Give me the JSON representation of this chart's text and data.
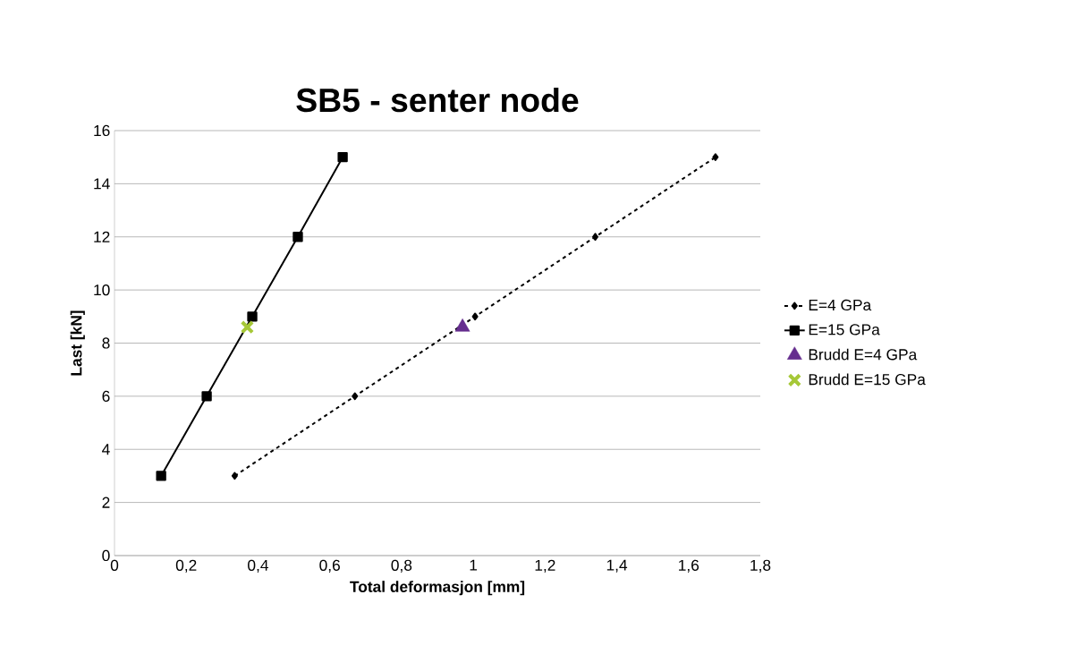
{
  "chart_data": {
    "type": "line",
    "title": "SB5 - senter node",
    "xlabel": "Total deformasjon [mm]",
    "ylabel": "Last [kN]",
    "xlim": [
      0,
      1.8
    ],
    "ylim": [
      0,
      16
    ],
    "xticks": [
      0,
      {
        "value": 0.2,
        "label": "0,2"
      },
      {
        "value": 0.4,
        "label": "0,4"
      },
      {
        "value": 0.6,
        "label": "0,6"
      },
      {
        "value": 0.8,
        "label": "0,8"
      },
      1,
      {
        "value": 1.2,
        "label": "1,2"
      },
      {
        "value": 1.4,
        "label": "1,4"
      },
      {
        "value": 1.6,
        "label": "1,6"
      },
      {
        "value": 1.8,
        "label": "1,8"
      }
    ],
    "yticks": [
      0,
      2,
      4,
      6,
      8,
      10,
      12,
      14,
      16
    ],
    "grid": "y",
    "legend": "right",
    "series": [
      {
        "name": "E=4 GPa",
        "color": "#000000",
        "x": [
          0.335,
          0.67,
          1.005,
          1.34,
          1.675
        ],
        "values": [
          3,
          6,
          9,
          12,
          15
        ],
        "marker": "diamond",
        "line_style": "dashed"
      },
      {
        "name": "E=15 GPa",
        "color": "#000000",
        "x": [
          0.13,
          0.257,
          0.384,
          0.511,
          0.636
        ],
        "values": [
          3,
          6,
          9,
          12,
          15
        ],
        "marker": "square",
        "line_style": "solid"
      },
      {
        "name": "Brudd E=4 GPa",
        "type": "scatter",
        "color": "#652d8e",
        "x": [
          0.97
        ],
        "values": [
          8.6
        ],
        "marker": "triangle"
      },
      {
        "name": "Brudd E=15 GPa",
        "type": "scatter",
        "color": "#a6c837",
        "x": [
          0.37
        ],
        "values": [
          8.6
        ],
        "marker": "cross"
      }
    ]
  }
}
